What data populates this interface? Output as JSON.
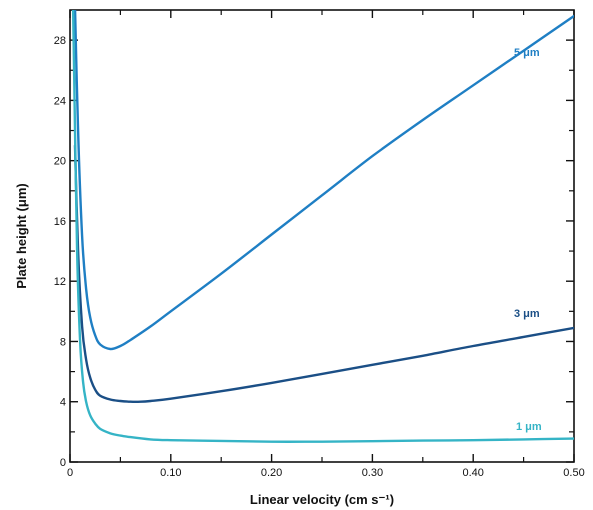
{
  "chart_data": {
    "type": "line",
    "xlabel": "Linear velocity (cm s⁻¹)",
    "ylabel": "Plate height (μm)",
    "xlim": [
      0,
      0.5
    ],
    "ylim": [
      0,
      30
    ],
    "x_ticks": [
      0,
      0.1,
      0.2,
      0.3,
      0.4,
      0.5
    ],
    "x_tick_labels": [
      "0",
      "0.10",
      "0.20",
      "0.30",
      "0.40",
      "0.50"
    ],
    "y_ticks": [
      0,
      4,
      8,
      12,
      16,
      20,
      24,
      28
    ],
    "y_tick_labels": [
      "0",
      "4",
      "8",
      "12",
      "16",
      "20",
      "24",
      "28"
    ],
    "grid": false,
    "series": [
      {
        "name": "5 μm",
        "color": "#1f7fc4",
        "x": [
          0.005,
          0.008,
          0.012,
          0.016,
          0.02,
          0.025,
          0.03,
          0.04,
          0.05,
          0.06,
          0.08,
          0.1,
          0.15,
          0.2,
          0.25,
          0.3,
          0.35,
          0.4,
          0.45,
          0.5
        ],
        "y": [
          30.2,
          22.0,
          15.0,
          11.5,
          9.6,
          8.4,
          7.8,
          7.5,
          7.7,
          8.1,
          9.0,
          10.0,
          12.5,
          15.1,
          17.7,
          20.3,
          22.7,
          25.0,
          27.3,
          29.6
        ]
      },
      {
        "name": "3 μm",
        "color": "#1b4f86",
        "x": [
          0.005,
          0.008,
          0.012,
          0.016,
          0.02,
          0.025,
          0.03,
          0.04,
          0.05,
          0.06,
          0.07,
          0.08,
          0.1,
          0.15,
          0.2,
          0.25,
          0.3,
          0.35,
          0.4,
          0.45,
          0.5
        ],
        "y": [
          21.0,
          14.0,
          9.0,
          6.8,
          5.6,
          4.8,
          4.4,
          4.15,
          4.05,
          4.0,
          4.0,
          4.05,
          4.2,
          4.7,
          5.25,
          5.85,
          6.45,
          7.05,
          7.7,
          8.3,
          8.9
        ]
      },
      {
        "name": "1 μm",
        "color": "#35b4c6",
        "x": [
          0.003,
          0.005,
          0.007,
          0.01,
          0.013,
          0.016,
          0.02,
          0.025,
          0.03,
          0.04,
          0.05,
          0.06,
          0.08,
          0.1,
          0.15,
          0.2,
          0.25,
          0.3,
          0.35,
          0.4,
          0.45,
          0.5
        ],
        "y": [
          30.5,
          22.0,
          14.0,
          8.0,
          5.3,
          4.0,
          3.1,
          2.55,
          2.2,
          1.9,
          1.75,
          1.65,
          1.5,
          1.45,
          1.4,
          1.35,
          1.35,
          1.38,
          1.42,
          1.45,
          1.5,
          1.55
        ]
      }
    ]
  },
  "labels": {
    "s5": "5 μm",
    "s3": "3 μm",
    "s1": "1 μm"
  }
}
